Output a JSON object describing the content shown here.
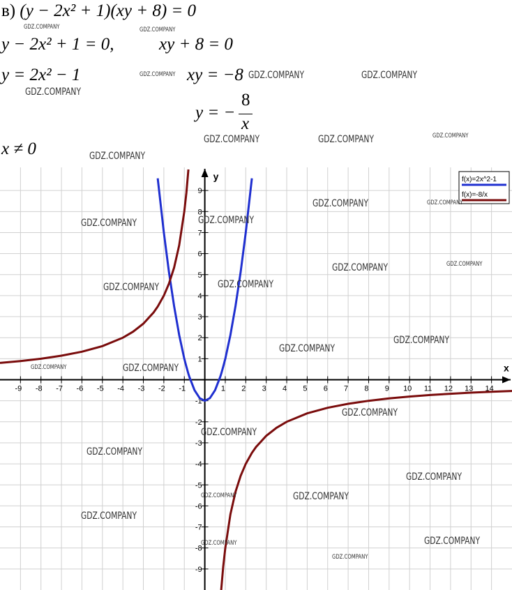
{
  "header": {
    "label": "в)",
    "equation": "(y − 2x² + 1)(xy + 8) = 0"
  },
  "steps": [
    {
      "left": "y − 2x² + 1 = 0,",
      "right": "xy + 8 = 0"
    },
    {
      "left": "y = 2x² − 1",
      "right": "xy = −8"
    }
  ],
  "fraction": {
    "lhs": "y = −",
    "numerator": "8",
    "denominator": "x"
  },
  "condition": "x ≠ 0",
  "watermark": "GDZ.COMPANY",
  "chart_data": {
    "type": "line",
    "x_label": "x",
    "y_label": "y",
    "grid": true,
    "legend": "top-right",
    "xlim": [
      -10,
      15
    ],
    "ylim": [
      -10,
      10.1
    ],
    "xticks": [
      -9,
      -8,
      -7,
      -6,
      -5,
      -4,
      -3,
      -2,
      -1,
      1,
      2,
      3,
      4,
      5,
      6,
      7,
      8,
      9,
      10,
      11,
      12,
      13,
      14
    ],
    "yticks": [
      -9,
      -8,
      -7,
      -6,
      -5,
      -4,
      -3,
      -2,
      -1,
      1,
      2,
      3,
      4,
      5,
      6,
      7,
      8,
      9
    ],
    "x": [
      -10,
      -9,
      -8,
      -7,
      -6,
      -5,
      -4,
      -3.5,
      -3,
      -2.5,
      -2.3,
      -2,
      -1.75,
      -1.5,
      -1.25,
      -1,
      -0.9,
      -0.8,
      -0.75,
      -0.5,
      -0.25,
      0,
      0.25,
      0.5,
      0.75,
      0.8,
      0.9,
      1,
      1.25,
      1.5,
      1.75,
      2,
      2.3,
      2.5,
      3,
      3.5,
      4,
      5,
      6,
      7,
      8,
      9,
      10,
      11,
      12,
      13,
      14,
      15
    ],
    "series": [
      {
        "name": "f(x)=2x^2-1",
        "color": "#1f2fd0",
        "values": [
          null,
          null,
          null,
          null,
          null,
          null,
          null,
          null,
          null,
          null,
          9.58,
          7,
          5.125,
          3.5,
          2.125,
          1,
          0.62,
          0.28,
          0.125,
          -0.5,
          -0.875,
          -1,
          -0.875,
          -0.5,
          0.125,
          0.28,
          0.62,
          1,
          2.125,
          3.5,
          5.125,
          7,
          9.58,
          null,
          null,
          null,
          null,
          null,
          null,
          null,
          null,
          null,
          null,
          null,
          null,
          null,
          null,
          null
        ]
      },
      {
        "name": "f(x)=-8/x",
        "color": "#7a0c0c",
        "values": [
          0.8,
          0.889,
          1,
          1.143,
          1.333,
          1.6,
          2,
          2.286,
          2.667,
          3.2,
          3.478,
          4,
          4.571,
          5.333,
          6.4,
          8,
          8.889,
          10,
          null,
          null,
          null,
          null,
          null,
          null,
          null,
          -10,
          -8.889,
          -8,
          -6.4,
          -5.333,
          -4.571,
          -4,
          -3.478,
          -3.2,
          -2.667,
          -2.286,
          -2,
          -1.6,
          -1.333,
          -1.143,
          -1,
          -0.889,
          -0.8,
          -0.727,
          -0.667,
          -0.615,
          -0.571,
          -0.533
        ]
      }
    ]
  }
}
